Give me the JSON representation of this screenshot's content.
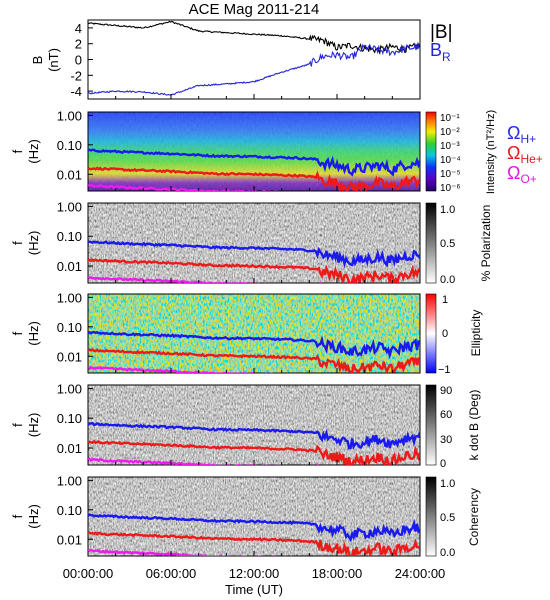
{
  "title": "ACE Mag 2011-214",
  "xlabel": "Time (UT)",
  "x_ticks": [
    "00:00:00",
    "06:00:00",
    "12:00:00",
    "18:00:00",
    "24:00:00"
  ],
  "legend_top": {
    "b_total": "|B|",
    "b_r_main": "B",
    "b_r_sub": "R"
  },
  "legend_cyclotron": [
    {
      "sym": "Ω",
      "sub": "H+",
      "color": "#2a2ae0"
    },
    {
      "sym": "Ω",
      "sub": "He+",
      "color": "#e01a1a"
    },
    {
      "sym": "Ω",
      "sub": "O+",
      "color": "#e01ad8"
    }
  ],
  "panel_ylabel": {
    "main": "f",
    "unit": "(Hz)"
  },
  "b_ylabel": {
    "main": "B",
    "unit": "(nT)"
  },
  "freq_ticks": [
    "1.00",
    "0.10",
    "0.01"
  ],
  "colors": {
    "b_total": "#000000",
    "b_r": "#2424d8",
    "h_plus": "#1a1aee",
    "he_plus": "#ee1a1a",
    "o_plus": "#ee1aee"
  },
  "chart_data": [
    {
      "type": "line",
      "panel": "B field",
      "ylabel": "B (nT)",
      "ylim": [
        -5,
        5
      ],
      "y_ticks": [
        "4",
        "2",
        "0",
        "-2",
        "-4"
      ],
      "x": [
        0,
        2,
        4,
        6,
        8,
        10,
        12,
        14,
        16,
        17,
        18,
        19,
        20,
        21,
        22,
        23,
        24
      ],
      "series": [
        {
          "name": "|B|",
          "values": [
            4.6,
            4.3,
            4.0,
            4.8,
            3.6,
            3.4,
            3.2,
            3.0,
            2.6,
            2.4,
            1.5,
            1.8,
            1.4,
            1.2,
            1.6,
            1.3,
            1.8
          ]
        },
        {
          "name": "B_R",
          "values": [
            -4.3,
            -4.0,
            -4.1,
            -4.5,
            -3.3,
            -3.1,
            -2.8,
            -1.6,
            -0.6,
            0.4,
            0.6,
            0.2,
            1.6,
            1.2,
            0.9,
            1.4,
            1.6
          ]
        }
      ]
    },
    {
      "type": "heatmap",
      "panel": "Power spectrum",
      "ylabel": "f (Hz)",
      "colorbar_label": "Intensity (nT²/Hz)",
      "colorbar_ticks": [
        "10⁻¹",
        "10⁻²",
        "10⁻³",
        "10⁻⁴",
        "10⁻⁵",
        "10⁻⁶"
      ],
      "colormap": "rainbow",
      "cyclotron_lines": true
    },
    {
      "type": "heatmap",
      "panel": "Polarization",
      "ylabel": "f (Hz)",
      "colorbar_label": "% Polarization",
      "colorbar_ticks": [
        "1.0",
        "0.5",
        "0.0"
      ],
      "colormap": "gray",
      "cyclotron_lines": true
    },
    {
      "type": "heatmap",
      "panel": "Ellipticity",
      "ylabel": "f (Hz)",
      "colorbar_label": "Ellipticity",
      "colorbar_ticks": [
        "1",
        "0",
        "−1"
      ],
      "colormap": "blue-white-red",
      "cyclotron_lines": true
    },
    {
      "type": "heatmap",
      "panel": "k dot B",
      "ylabel": "f (Hz)",
      "colorbar_label": "k dot B (Deg)",
      "colorbar_ticks": [
        "90",
        "60",
        "30",
        "0"
      ],
      "colormap": "gray",
      "cyclotron_lines": true
    },
    {
      "type": "heatmap",
      "panel": "Coherency",
      "ylabel": "f (Hz)",
      "colorbar_label": "Coherency",
      "colorbar_ticks": [
        "1.0",
        "0.5",
        "0.0"
      ],
      "colormap": "gray",
      "cyclotron_lines": true
    }
  ],
  "cyclotron_freq": {
    "x": [
      0,
      3,
      6,
      9,
      12,
      15,
      16.5,
      17,
      18,
      19,
      20,
      21,
      22,
      23,
      24
    ],
    "h_plus": [
      0.065,
      0.056,
      0.05,
      0.042,
      0.04,
      0.036,
      0.032,
      0.024,
      0.02,
      0.014,
      0.016,
      0.02,
      0.014,
      0.022,
      0.025
    ],
    "he_plus": [
      0.016,
      0.014,
      0.0125,
      0.0105,
      0.01,
      0.009,
      0.008,
      0.006,
      0.005,
      0.0035,
      0.004,
      0.005,
      0.0035,
      0.0055,
      0.0062
    ],
    "o_plus": [
      0.0041,
      0.0035,
      0.0031,
      0.0026,
      0.0025,
      0.0023,
      0.002,
      0.0015,
      0.0013,
      0.0009,
      0.001,
      0.0013,
      0.0009,
      0.0014,
      0.0016
    ]
  }
}
